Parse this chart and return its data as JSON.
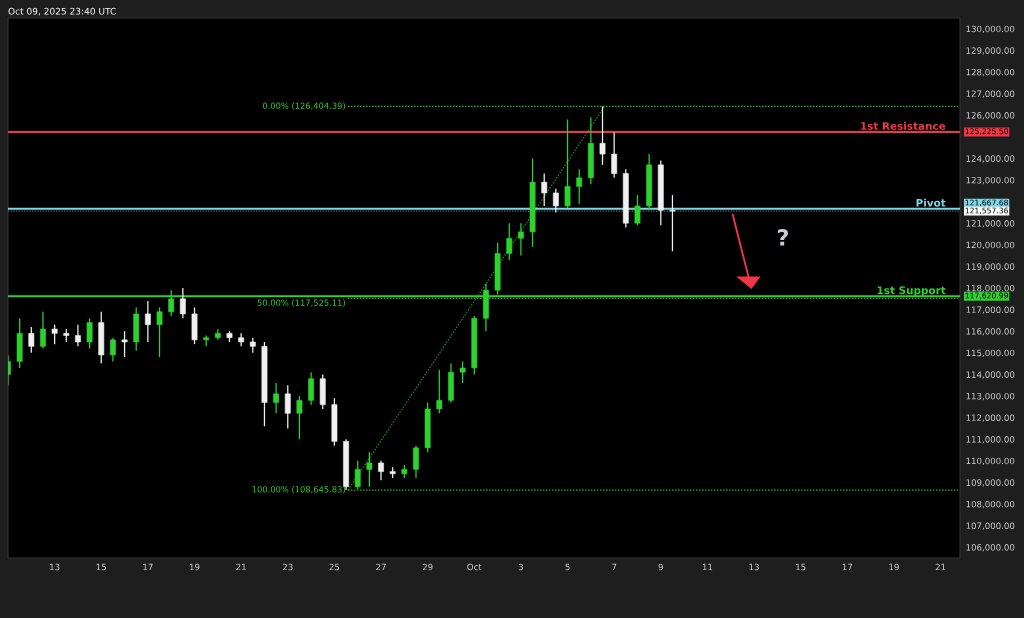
{
  "chart_data": {
    "type": "candlestick",
    "x": [
      "2025-09-11T00:00",
      "2025-09-11T12:00",
      "2025-09-12T00:00",
      "2025-09-12T12:00",
      "2025-09-13T00:00",
      "2025-09-13T12:00",
      "2025-09-14T00:00",
      "2025-09-14T12:00",
      "2025-09-15T00:00",
      "2025-09-15T12:00",
      "2025-09-16T00:00",
      "2025-09-16T12:00",
      "2025-09-17T00:00",
      "2025-09-17T12:00",
      "2025-09-18T00:00",
      "2025-09-18T12:00",
      "2025-09-19T00:00",
      "2025-09-19T12:00",
      "2025-09-20T00:00",
      "2025-09-20T12:00",
      "2025-09-21T00:00",
      "2025-09-21T12:00",
      "2025-09-22T00:00",
      "2025-09-22T12:00",
      "2025-09-23T00:00",
      "2025-09-23T12:00",
      "2025-09-24T00:00",
      "2025-09-24T12:00",
      "2025-09-25T00:00",
      "2025-09-25T12:00",
      "2025-09-26T00:00",
      "2025-09-26T12:00",
      "2025-09-27T00:00",
      "2025-09-27T12:00",
      "2025-09-28T00:00",
      "2025-09-28T12:00",
      "2025-09-29T00:00",
      "2025-09-29T12:00",
      "2025-09-30T00:00",
      "2025-09-30T12:00",
      "2025-10-01T00:00",
      "2025-10-01T12:00",
      "2025-10-02T00:00",
      "2025-10-02T12:00",
      "2025-10-03T00:00",
      "2025-10-03T12:00",
      "2025-10-04T00:00",
      "2025-10-04T12:00",
      "2025-10-05T00:00",
      "2025-10-05T12:00",
      "2025-10-06T00:00",
      "2025-10-06T12:00",
      "2025-10-07T00:00",
      "2025-10-07T12:00",
      "2025-10-08T00:00",
      "2025-10-08T12:00",
      "2025-10-09T00:00",
      "2025-10-09T12:00"
    ],
    "ohlc": [
      [
        114000,
        114900,
        113500,
        114600
      ],
      [
        114600,
        116600,
        114300,
        115900
      ],
      [
        115900,
        116200,
        115000,
        115300
      ],
      [
        115300,
        116900,
        115200,
        116100
      ],
      [
        116100,
        116300,
        115400,
        115900
      ],
      [
        115900,
        116100,
        115500,
        115800
      ],
      [
        115800,
        116300,
        115300,
        115500
      ],
      [
        115500,
        116600,
        115200,
        116400
      ],
      [
        116400,
        116900,
        114500,
        114900
      ],
      [
        114900,
        115700,
        114600,
        115600
      ],
      [
        115600,
        116000,
        114800,
        115500
      ],
      [
        115500,
        117100,
        115100,
        116800
      ],
      [
        116800,
        117400,
        115500,
        116300
      ],
      [
        116300,
        117100,
        114800,
        116900
      ],
      [
        116900,
        117900,
        116700,
        117500
      ],
      [
        117500,
        118000,
        116600,
        116800
      ],
      [
        116800,
        117100,
        115400,
        115600
      ],
      [
        115600,
        115800,
        115300,
        115700
      ],
      [
        115700,
        116100,
        115600,
        115900
      ],
      [
        115900,
        116000,
        115500,
        115700
      ],
      [
        115700,
        115900,
        115300,
        115500
      ],
      [
        115500,
        115700,
        115000,
        115300
      ],
      [
        115300,
        115500,
        111600,
        112700
      ],
      [
        112700,
        113600,
        112200,
        113100
      ],
      [
        113100,
        113500,
        111500,
        112200
      ],
      [
        112200,
        113000,
        111000,
        112800
      ],
      [
        112800,
        114100,
        112600,
        113800
      ],
      [
        113800,
        114000,
        112400,
        112600
      ],
      [
        112600,
        112900,
        110700,
        110900
      ],
      [
        110900,
        111000,
        108645.83,
        108800
      ],
      [
        108800,
        110000,
        108700,
        109600
      ],
      [
        109600,
        110400,
        108800,
        109900
      ],
      [
        109900,
        110000,
        109100,
        109500
      ],
      [
        109500,
        109700,
        109200,
        109400
      ],
      [
        109400,
        109800,
        109200,
        109600
      ],
      [
        109600,
        110700,
        109200,
        110600
      ],
      [
        110600,
        112700,
        110400,
        112400
      ],
      [
        112400,
        114200,
        112200,
        112800
      ],
      [
        112800,
        114500,
        112700,
        114100
      ],
      [
        114100,
        114600,
        113600,
        114300
      ],
      [
        114300,
        116700,
        114000,
        116600
      ],
      [
        116600,
        118200,
        116000,
        117900
      ],
      [
        117900,
        120100,
        117700,
        119600
      ],
      [
        119600,
        121000,
        119300,
        120300
      ],
      [
        120300,
        121000,
        119500,
        120600
      ],
      [
        120600,
        124000,
        119900,
        122900
      ],
      [
        122900,
        123300,
        121800,
        122400
      ],
      [
        122400,
        122600,
        121500,
        121800
      ],
      [
        121800,
        125800,
        121700,
        122700
      ],
      [
        122700,
        123500,
        121900,
        123100
      ],
      [
        123100,
        125900,
        122800,
        124700
      ],
      [
        124700,
        126404.39,
        123700,
        124200
      ],
      [
        124200,
        125200,
        123100,
        123300
      ],
      [
        123300,
        123500,
        120800,
        121000
      ],
      [
        121000,
        122300,
        120900,
        121800
      ],
      [
        121800,
        124200,
        121600,
        123700
      ],
      [
        123700,
        123900,
        120900,
        121600
      ],
      [
        121600,
        122300,
        119700,
        121557.36
      ]
    ],
    "series": [
      {
        "type": "line",
        "x": [
          "2025-09-25T14:00",
          "2025-10-06T14:00"
        ],
        "values": [
          108645.83,
          126404.39
        ],
        "color": "#1a8a1a",
        "line_style": "dotted"
      },
      {
        "type": "line",
        "x": [
          "2025-09-25T14:00",
          "2025-10-21T18:00"
        ],
        "values": [
          126404.39,
          126404.39
        ],
        "color": "#22b822",
        "line_style": "dotted"
      },
      {
        "type": "line",
        "x": [
          "2025-09-25T14:00",
          "2025-10-21T18:00"
        ],
        "values": [
          117525.11,
          117525.11
        ],
        "color": "#22b822",
        "line_style": "dotted"
      },
      {
        "type": "line",
        "x": [
          "2025-09-25T14:00",
          "2025-10-21T18:00"
        ],
        "values": [
          108645.83,
          108645.83
        ],
        "color": "#22b822",
        "line_style": "dotted"
      }
    ],
    "ref_lines": [
      {
        "axis": "y",
        "value": 125225.5,
        "label": "1st Resistance",
        "color": "#f23645",
        "line_style": "solid"
      },
      {
        "axis": "y",
        "value": 121667.68,
        "label": "Pivot",
        "color": "#7fd6e8",
        "line_style": "solid"
      },
      {
        "axis": "y",
        "value": 117620.99,
        "label": "1st Support",
        "color": "#2fd12f",
        "line_style": "solid"
      },
      {
        "axis": "y",
        "value": 121557.36,
        "color": "#5a5a5a",
        "line_style": "dotted"
      }
    ],
    "annotations": [
      "Oct 09, 2025 23:40 UTC",
      "?",
      {
        "text": "0.00% (126,404.39)",
        "x": "2025-09-25T14:00",
        "y": 126404.39
      },
      {
        "text": "50.00% (117,525.11)",
        "x": "2025-09-25T14:00",
        "y": 117525.11
      },
      {
        "text": "100.00% (108,645.83)",
        "x": "2025-09-25T14:00",
        "y": 108645.83
      },
      "125,225.50",
      "121,667.68",
      "117,620.99",
      "121,557.36"
    ],
    "xlim": [
      "2025-09-11T00:00",
      "2025-10-21T20:00"
    ],
    "xticks": [
      {
        "value": "2025-09-13",
        "label": "13"
      },
      {
        "value": "2025-09-15",
        "label": "15"
      },
      {
        "value": "2025-09-17",
        "label": "17"
      },
      {
        "value": "2025-09-19",
        "label": "19"
      },
      {
        "value": "2025-09-21",
        "label": "21"
      },
      {
        "value": "2025-09-23",
        "label": "23"
      },
      {
        "value": "2025-09-25",
        "label": "25"
      },
      {
        "value": "2025-09-27",
        "label": "27"
      },
      {
        "value": "2025-09-29",
        "label": "29"
      },
      {
        "value": "2025-10-01",
        "label": "Oct"
      },
      {
        "value": "2025-10-03",
        "label": "3"
      },
      {
        "value": "2025-10-05",
        "label": "5"
      },
      {
        "value": "2025-10-07",
        "label": "7"
      },
      {
        "value": "2025-10-09",
        "label": "9"
      },
      {
        "value": "2025-10-11",
        "label": "11"
      },
      {
        "value": "2025-10-13",
        "label": "13"
      },
      {
        "value": "2025-10-15",
        "label": "15"
      },
      {
        "value": "2025-10-17",
        "label": "17"
      },
      {
        "value": "2025-10-19",
        "label": "19"
      },
      {
        "value": "2025-10-21",
        "label": "21"
      }
    ],
    "ylim": [
      105500,
      130500
    ],
    "yticks": [
      {
        "value": 106000,
        "label": "106,000.00"
      },
      {
        "value": 107000,
        "label": "107,000.00"
      },
      {
        "value": 108000,
        "label": "108,000.00"
      },
      {
        "value": 109000,
        "label": "109,000.00"
      },
      {
        "value": 110000,
        "label": "110,000.00"
      },
      {
        "value": 111000,
        "label": "111,000.00"
      },
      {
        "value": 112000,
        "label": "112,000.00"
      },
      {
        "value": 113000,
        "label": "113,000.00"
      },
      {
        "value": 114000,
        "label": "114,000.00"
      },
      {
        "value": 115000,
        "label": "115,000.00"
      },
      {
        "value": 116000,
        "label": "116,000.00"
      },
      {
        "value": 117000,
        "label": "117,000.00"
      },
      {
        "value": 118000,
        "label": "118,000.00"
      },
      {
        "value": 119000,
        "label": "119,000.00"
      },
      {
        "value": 120000,
        "label": "120,000.00"
      },
      {
        "value": 121000,
        "label": "121,000.00"
      },
      {
        "value": 123000,
        "label": "123,000.00"
      },
      {
        "value": 124000,
        "label": "124,000.00"
      },
      {
        "value": 126000,
        "label": "126,000.00"
      },
      {
        "value": 127000,
        "label": "127,000.00"
      },
      {
        "value": 128000,
        "label": "128,000.00"
      },
      {
        "value": 129000,
        "label": "129,000.00"
      },
      {
        "value": 130000,
        "label": "130,000.00"
      }
    ],
    "grid": false,
    "legend": false
  }
}
